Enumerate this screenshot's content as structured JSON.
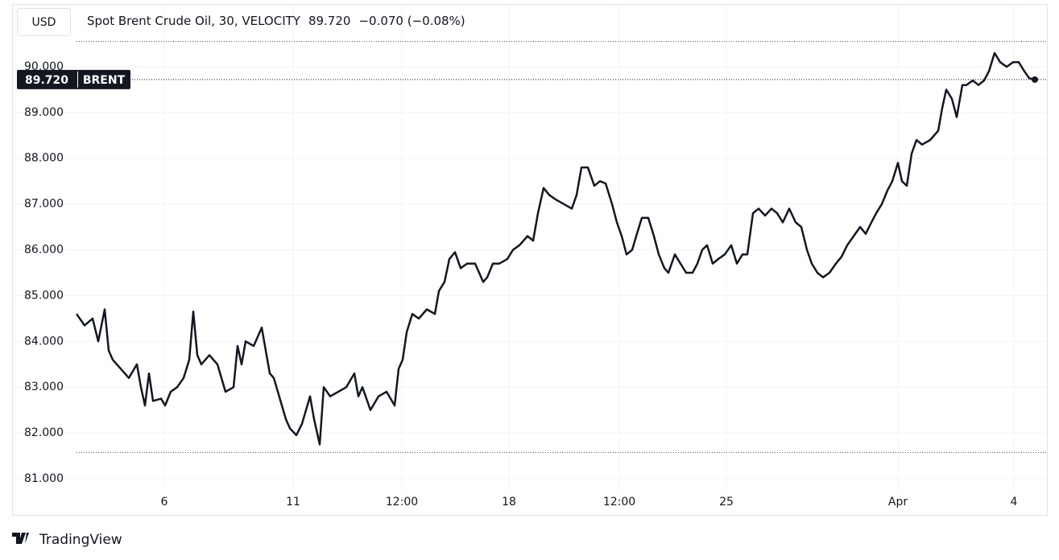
{
  "chart_data": {
    "type": "line",
    "currency": "USD",
    "title": "Spot Brent Crude Oil, 30, VELOCITY",
    "last_price": "89.720",
    "change": "−0.070 (−0.08%)",
    "brand": "TradingView",
    "grid": true,
    "xlim": [
      0,
      120
    ],
    "ylim": [
      80.2,
      91.3
    ],
    "xticks": [
      {
        "value": 10.9,
        "label": "6"
      },
      {
        "value": 26.9,
        "label": "11"
      },
      {
        "value": 40.4,
        "label": "12:00"
      },
      {
        "value": 53.7,
        "label": "18"
      },
      {
        "value": 67.4,
        "label": "12:00"
      },
      {
        "value": 80.7,
        "label": "25"
      },
      {
        "value": 102,
        "label": "Apr"
      },
      {
        "value": 116.4,
        "label": "4"
      }
    ],
    "yticks": [
      {
        "value": 81,
        "label": "81.000"
      },
      {
        "value": 82,
        "label": "82.000"
      },
      {
        "value": 83,
        "label": "83.000"
      },
      {
        "value": 84,
        "label": "84.000"
      },
      {
        "value": 85,
        "label": "85.000"
      },
      {
        "value": 86,
        "label": "86.000"
      },
      {
        "value": 87,
        "label": "87.000"
      },
      {
        "value": 88,
        "label": "88.000"
      },
      {
        "value": 89,
        "label": "89.000"
      },
      {
        "value": 90,
        "label": "90.000"
      }
    ],
    "series": [
      {
        "name": "BRENT",
        "color": "#131722",
        "x": [
          0,
          1,
          2,
          2.7,
          3.5,
          4,
          4.5,
          5.5,
          6.5,
          7.5,
          8,
          8.5,
          9,
          9.5,
          10.5,
          11,
          11.7,
          12.5,
          13.3,
          14,
          14.5,
          15,
          15.5,
          16.5,
          17.5,
          18.5,
          19.5,
          20,
          20.5,
          21,
          22,
          23,
          23.5,
          24,
          24.5,
          25,
          25.5,
          26,
          26.5,
          27.3,
          28,
          28.5,
          29,
          29.5,
          30.2,
          30.7,
          31.5,
          32.5,
          33.5,
          34.5,
          35,
          35.5,
          36.5,
          37.5,
          38.5,
          39.5,
          40,
          40.5,
          41,
          41.7,
          42.5,
          43.5,
          44.5,
          45,
          45.7,
          46.3,
          47,
          47.7,
          48.5,
          49.5,
          50.5,
          51,
          51.7,
          52.5,
          53.5,
          54.2,
          55,
          56,
          56.7,
          57.3,
          58,
          58.7,
          59.5,
          60.5,
          61.5,
          62.1,
          62.7,
          63.5,
          64.3,
          65,
          65.7,
          66.5,
          67.1,
          67.7,
          68.3,
          69,
          69.5,
          70.2,
          71,
          71.7,
          72.3,
          73,
          73.5,
          74.3,
          75,
          75.7,
          76.5,
          77.1,
          77.7,
          78.3,
          79,
          79.7,
          80.5,
          81.3,
          82,
          82.7,
          83.3,
          84,
          84.7,
          85.5,
          86.3,
          87,
          87.7,
          88.5,
          89.3,
          90,
          90.7,
          91.3,
          92,
          92.7,
          93.5,
          94.3,
          95,
          95.7,
          96.5,
          97.3,
          98,
          98.7,
          99.3,
          100,
          100.7,
          101.3,
          102,
          102.5,
          103.1,
          103.7,
          104.3,
          105,
          106,
          107,
          107.5,
          108,
          108.7,
          109.3,
          110,
          110.5,
          111.3,
          112,
          112.7,
          113.3,
          114,
          114.7,
          115.5,
          116.3,
          117,
          117.7,
          118.3,
          119
        ],
        "values": [
          84.6,
          84.35,
          84.5,
          84.0,
          84.7,
          83.8,
          83.6,
          83.4,
          83.2,
          83.5,
          83.0,
          82.6,
          83.3,
          82.7,
          82.75,
          82.6,
          82.9,
          83.0,
          83.2,
          83.6,
          84.65,
          83.7,
          83.5,
          83.7,
          83.5,
          82.9,
          83.0,
          83.9,
          83.5,
          84.0,
          83.9,
          84.3,
          83.8,
          83.3,
          83.2,
          82.9,
          82.6,
          82.3,
          82.1,
          81.95,
          82.2,
          82.5,
          82.8,
          82.3,
          81.75,
          83.0,
          82.8,
          82.9,
          83.0,
          83.3,
          82.8,
          83.0,
          82.5,
          82.8,
          82.9,
          82.6,
          83.4,
          83.6,
          84.2,
          84.6,
          84.5,
          84.7,
          84.6,
          85.1,
          85.3,
          85.8,
          85.95,
          85.6,
          85.7,
          85.7,
          85.3,
          85.4,
          85.7,
          85.7,
          85.8,
          86.0,
          86.1,
          86.3,
          86.2,
          86.8,
          87.35,
          87.2,
          87.1,
          87.0,
          86.9,
          87.2,
          87.8,
          87.8,
          87.4,
          87.5,
          87.45,
          87.0,
          86.6,
          86.3,
          85.9,
          86.0,
          86.3,
          86.7,
          86.7,
          86.3,
          85.9,
          85.6,
          85.5,
          85.9,
          85.7,
          85.5,
          85.5,
          85.7,
          86.0,
          86.1,
          85.7,
          85.8,
          85.9,
          86.1,
          85.7,
          85.9,
          85.9,
          86.8,
          86.9,
          86.75,
          86.9,
          86.8,
          86.6,
          86.9,
          86.6,
          86.5,
          86.0,
          85.7,
          85.5,
          85.4,
          85.5,
          85.7,
          85.85,
          86.1,
          86.3,
          86.5,
          86.35,
          86.6,
          86.8,
          87.0,
          87.3,
          87.5,
          87.9,
          87.5,
          87.4,
          88.1,
          88.4,
          88.3,
          88.4,
          88.6,
          89.1,
          89.5,
          89.3,
          88.9,
          89.6,
          89.6,
          89.7,
          89.6,
          89.7,
          89.9,
          90.3,
          90.1,
          90.0,
          90.1,
          90.1,
          89.9,
          89.75,
          89.72
        ]
      }
    ]
  }
}
